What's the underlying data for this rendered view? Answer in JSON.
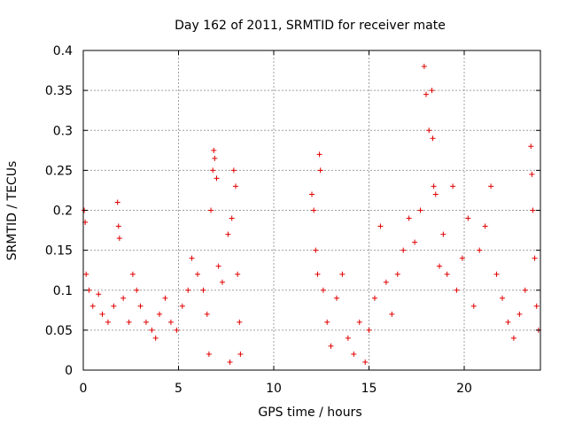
{
  "chart_data": {
    "type": "scatter",
    "title": "Day 162 of 2011, SRMTID for receiver mate",
    "xlabel": "GPS time / hours",
    "ylabel": "SRMTID / TECUs",
    "xlim": [
      0,
      24
    ],
    "ylim": [
      0,
      0.4
    ],
    "x_ticks": [
      0,
      5,
      10,
      15,
      20
    ],
    "x_tick_labels": [
      "0",
      "5",
      "10",
      "15",
      "20"
    ],
    "y_ticks": [
      0,
      0.05,
      0.1,
      0.15,
      0.2,
      0.25,
      0.3,
      0.35,
      0.4
    ],
    "y_tick_labels": [
      "0",
      "0.05",
      "0.1",
      "0.15",
      "0.2",
      "0.25",
      "0.3",
      "0.35",
      "0.4"
    ],
    "grid": true,
    "marker": "+",
    "colors": {
      "series": "#e00000",
      "grid": "#a0a0a0",
      "axis": "#000000"
    },
    "series": [
      {
        "name": "SRMTID",
        "points": [
          [
            0.05,
            0.2
          ],
          [
            0.1,
            0.185
          ],
          [
            0.15,
            0.12
          ],
          [
            0.3,
            0.1
          ],
          [
            0.5,
            0.08
          ],
          [
            0.8,
            0.095
          ],
          [
            1.0,
            0.07
          ],
          [
            1.3,
            0.06
          ],
          [
            1.6,
            0.08
          ],
          [
            1.8,
            0.21
          ],
          [
            1.85,
            0.18
          ],
          [
            1.9,
            0.165
          ],
          [
            2.1,
            0.09
          ],
          [
            2.4,
            0.06
          ],
          [
            2.6,
            0.12
          ],
          [
            2.8,
            0.1
          ],
          [
            3.0,
            0.08
          ],
          [
            3.3,
            0.06
          ],
          [
            3.6,
            0.05
          ],
          [
            3.8,
            0.04
          ],
          [
            4.0,
            0.07
          ],
          [
            4.3,
            0.09
          ],
          [
            4.6,
            0.06
          ],
          [
            4.9,
            0.05
          ],
          [
            5.2,
            0.08
          ],
          [
            5.5,
            0.1
          ],
          [
            5.7,
            0.14
          ],
          [
            6.0,
            0.12
          ],
          [
            6.3,
            0.1
          ],
          [
            6.5,
            0.07
          ],
          [
            6.7,
            0.2
          ],
          [
            6.8,
            0.25
          ],
          [
            6.85,
            0.275
          ],
          [
            6.9,
            0.265
          ],
          [
            7.0,
            0.24
          ],
          [
            7.1,
            0.13
          ],
          [
            7.3,
            0.11
          ],
          [
            7.6,
            0.17
          ],
          [
            7.8,
            0.19
          ],
          [
            7.9,
            0.25
          ],
          [
            8.0,
            0.23
          ],
          [
            8.1,
            0.12
          ],
          [
            8.2,
            0.06
          ],
          [
            8.25,
            0.02
          ],
          [
            7.7,
            0.01
          ],
          [
            6.6,
            0.02
          ],
          [
            12.0,
            0.22
          ],
          [
            12.1,
            0.2
          ],
          [
            12.2,
            0.15
          ],
          [
            12.3,
            0.12
          ],
          [
            12.4,
            0.27
          ],
          [
            12.45,
            0.25
          ],
          [
            12.6,
            0.1
          ],
          [
            12.8,
            0.06
          ],
          [
            13.0,
            0.03
          ],
          [
            13.3,
            0.09
          ],
          [
            13.6,
            0.12
          ],
          [
            13.9,
            0.04
          ],
          [
            14.2,
            0.02
          ],
          [
            14.5,
            0.06
          ],
          [
            14.8,
            0.01
          ],
          [
            15.0,
            0.05
          ],
          [
            15.3,
            0.09
          ],
          [
            15.6,
            0.18
          ],
          [
            15.9,
            0.11
          ],
          [
            16.2,
            0.07
          ],
          [
            16.5,
            0.12
          ],
          [
            16.8,
            0.15
          ],
          [
            17.1,
            0.19
          ],
          [
            17.4,
            0.16
          ],
          [
            17.7,
            0.2
          ],
          [
            17.9,
            0.38
          ],
          [
            18.0,
            0.345
          ],
          [
            18.15,
            0.3
          ],
          [
            18.3,
            0.35
          ],
          [
            18.35,
            0.29
          ],
          [
            18.4,
            0.23
          ],
          [
            18.5,
            0.22
          ],
          [
            18.7,
            0.13
          ],
          [
            18.9,
            0.17
          ],
          [
            19.1,
            0.12
          ],
          [
            19.4,
            0.23
          ],
          [
            19.6,
            0.1
          ],
          [
            19.9,
            0.14
          ],
          [
            20.2,
            0.19
          ],
          [
            20.5,
            0.08
          ],
          [
            20.8,
            0.15
          ],
          [
            21.1,
            0.18
          ],
          [
            21.4,
            0.23
          ],
          [
            21.7,
            0.12
          ],
          [
            22.0,
            0.09
          ],
          [
            22.3,
            0.06
          ],
          [
            22.6,
            0.04
          ],
          [
            22.9,
            0.07
          ],
          [
            23.2,
            0.1
          ],
          [
            23.5,
            0.28
          ],
          [
            23.55,
            0.245
          ],
          [
            23.6,
            0.2
          ],
          [
            23.7,
            0.14
          ],
          [
            23.8,
            0.08
          ],
          [
            23.9,
            0.05
          ]
        ]
      }
    ]
  }
}
